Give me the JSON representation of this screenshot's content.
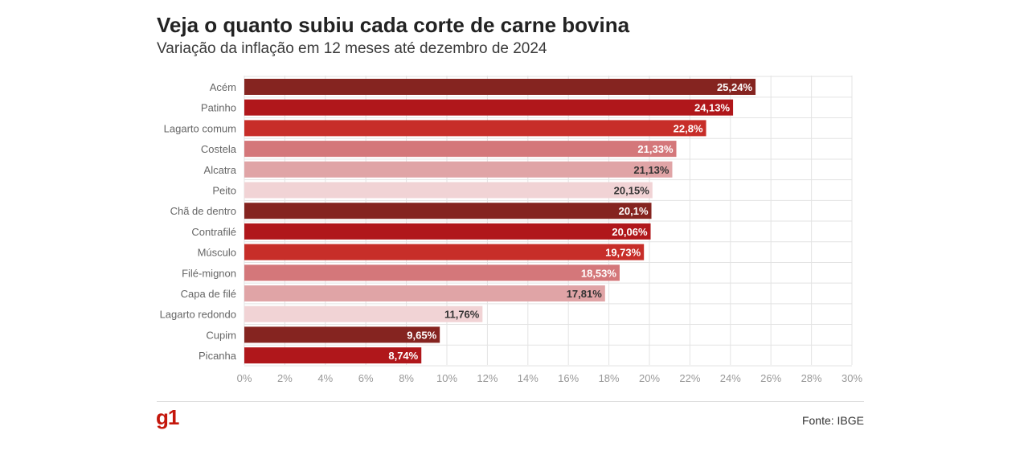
{
  "chart_data": {
    "type": "bar",
    "orientation": "horizontal",
    "title": "Veja o quanto subiu cada corte de carne bovina",
    "subtitle": "Variação da inflação em 12 meses até dezembro de 2024",
    "categories": [
      "Acém",
      "Patinho",
      "Lagarto comum",
      "Costela",
      "Alcatra",
      "Peito",
      "Chã de dentro",
      "Contrafilé",
      "Músculo",
      "Filé-mignon",
      "Capa de filé",
      "Lagarto redondo",
      "Cupim",
      "Picanha"
    ],
    "values": [
      25.24,
      24.13,
      22.8,
      21.33,
      21.13,
      20.15,
      20.1,
      20.06,
      19.73,
      18.53,
      17.81,
      11.76,
      9.65,
      8.74
    ],
    "value_labels": [
      "25,24%",
      "24,13%",
      "22,8%",
      "21,33%",
      "21,13%",
      "20,15%",
      "20,1%",
      "20,06%",
      "19,73%",
      "18,53%",
      "17,81%",
      "11,76%",
      "9,65%",
      "8,74%"
    ],
    "bar_colors": [
      "#852420",
      "#b0171b",
      "#c72e29",
      "#d4777a",
      "#e0a4a6",
      "#f1d3d5",
      "#852420",
      "#b0171b",
      "#c72e29",
      "#d4777a",
      "#e0a4a6",
      "#f1d3d5",
      "#852420",
      "#b0171b"
    ],
    "label_colors": [
      "#ffffff",
      "#ffffff",
      "#ffffff",
      "#ffffff",
      "#333333",
      "#333333",
      "#ffffff",
      "#ffffff",
      "#ffffff",
      "#ffffff",
      "#333333",
      "#333333",
      "#ffffff",
      "#ffffff"
    ],
    "xlim": [
      0,
      30
    ],
    "x_ticks": [
      "0%",
      "2%",
      "4%",
      "6%",
      "8%",
      "10%",
      "12%",
      "14%",
      "16%",
      "18%",
      "20%",
      "22%",
      "24%",
      "26%",
      "28%",
      "30%"
    ],
    "grid": true
  },
  "footer": {
    "logo": "g1",
    "source": "Fonte: IBGE"
  },
  "colors": {
    "brand": "#c4170c",
    "grid": "#e3e3e3"
  }
}
